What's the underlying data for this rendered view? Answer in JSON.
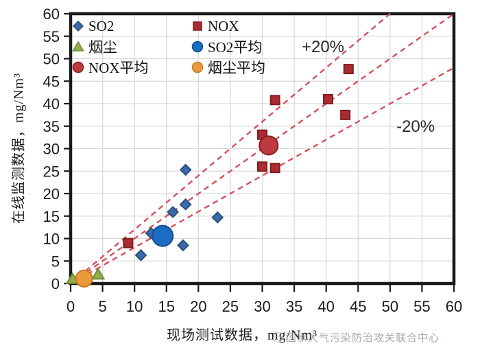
{
  "chart_data": {
    "type": "scatter",
    "title": "",
    "xlabel": "现场测试数据，mg/Nm³",
    "ylabel": "在线监测数据，mg/Nm³",
    "xlim": [
      0,
      60
    ],
    "ylim": [
      0,
      60
    ],
    "xticks": [
      0,
      5,
      10,
      15,
      20,
      25,
      30,
      35,
      40,
      45,
      50,
      55,
      60
    ],
    "yticks": [
      0,
      5,
      10,
      15,
      20,
      25,
      30,
      35,
      40,
      45,
      50,
      55,
      60
    ],
    "grid": true,
    "grid_color": "#d9d9d9",
    "axis_color": "#1a1a1a",
    "reference_line_color": "#d5505c",
    "reference_lines": [
      {
        "name": "plus-20-percent",
        "slope": 1.2
      },
      {
        "name": "parity",
        "slope": 1.0
      },
      {
        "name": "minus-20-percent",
        "slope": 0.8
      }
    ],
    "annotations": [
      {
        "text": "+20%",
        "x": 39.5,
        "y": 52.7
      },
      {
        "text": "-20%",
        "x": 54.0,
        "y": 35.0
      }
    ],
    "series": [
      {
        "name": "SO2",
        "marker": "diamond",
        "color": "#3a6aa8",
        "border": "#2a4f80",
        "size": 7.5,
        "points": [
          [
            11,
            6.3
          ],
          [
            12.6,
            11.2
          ],
          [
            16,
            15.9
          ],
          [
            17.6,
            8.5
          ],
          [
            18,
            17.6
          ],
          [
            18,
            25.3
          ],
          [
            23,
            14.7
          ]
        ]
      },
      {
        "name": "NOX",
        "marker": "square",
        "color": "#ae2c31",
        "border": "#7d1e22",
        "size": 13,
        "points": [
          [
            9,
            9
          ],
          [
            30,
            26
          ],
          [
            30,
            33.1
          ],
          [
            32,
            25.7
          ],
          [
            32,
            40.8
          ],
          [
            40.3,
            41
          ],
          [
            43,
            37.5
          ],
          [
            43.5,
            47.7
          ]
        ]
      },
      {
        "name": "烟尘",
        "marker": "triangle",
        "color": "#8fae4e",
        "border": "#6d8a35",
        "size": 8,
        "points": [
          [
            0.3,
            1.0
          ],
          [
            4.3,
            2.0
          ]
        ]
      },
      {
        "name": "SO2平均",
        "marker": "circle",
        "color": "#1b6cc4",
        "border": "#124e8f",
        "size": 15,
        "points": [
          [
            14.4,
            10.6
          ]
        ]
      },
      {
        "name": "NOX平均",
        "marker": "circle",
        "color": "#be3a41",
        "border": "#83211f",
        "size": 13.5,
        "points": [
          [
            31,
            30.7
          ]
        ]
      },
      {
        "name": "烟尘平均",
        "marker": "circle",
        "color": "#ea9a3d",
        "border": "#c87c1e",
        "size": 12,
        "points": [
          [
            2.1,
            1.1
          ]
        ]
      }
    ]
  },
  "legend": {
    "items": [
      {
        "label": "SO2",
        "marker": "diamond",
        "color": "#3a6aa8",
        "border": "#2a4f80"
      },
      {
        "label": "NOX",
        "marker": "square",
        "color": "#ae2c31",
        "border": "#7d1e22"
      },
      {
        "label": "烟尘",
        "marker": "triangle",
        "color": "#8fae4e",
        "border": "#6d8a35"
      },
      {
        "label": "SO2平均",
        "marker": "circle",
        "color": "#1b6cc4",
        "border": "#124e8f"
      },
      {
        "label": "NOX平均",
        "marker": "circle",
        "color": "#be3a41",
        "border": "#83211f"
      },
      {
        "label": "烟尘平均",
        "marker": "circle",
        "color": "#ea9a3d",
        "border": "#c87c1e"
      }
    ]
  },
  "watermark": {
    "text": "国家大气污染防治攻关联合中心"
  }
}
